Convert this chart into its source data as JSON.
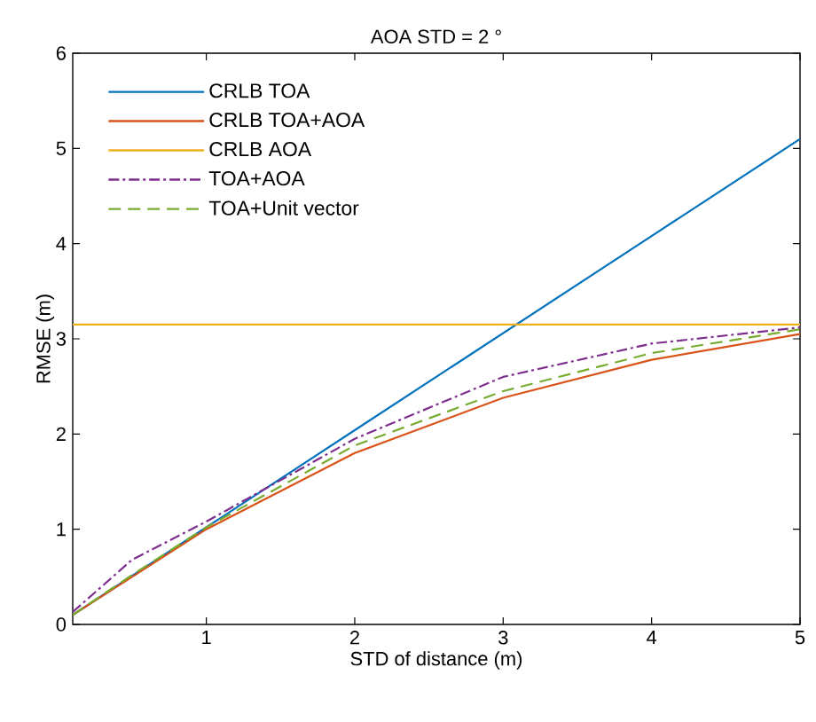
{
  "chart_data": {
    "type": "line",
    "title": "AOA STD = 2 °",
    "xlabel": "STD of distance (m)",
    "ylabel": "RMSE (m)",
    "x": [
      0.1,
      0.5,
      1,
      2,
      3,
      4,
      5
    ],
    "series": [
      {
        "name": "CRLB TOA",
        "color": "#0072bd",
        "values": [
          0.1,
          0.51,
          1.02,
          2.04,
          3.06,
          4.08,
          5.1
        ],
        "line_style": "solid"
      },
      {
        "name": "CRLB TOA+AOA",
        "color": "#d95319",
        "values": [
          0.1,
          0.5,
          1.0,
          1.8,
          2.38,
          2.78,
          3.05
        ],
        "line_style": "solid"
      },
      {
        "name": "CRLB AOA",
        "color": "#edb120",
        "values": [
          3.15,
          3.15,
          3.15,
          3.15,
          3.15,
          3.15,
          3.15
        ],
        "line_style": "solid"
      },
      {
        "name": "TOA+AOA",
        "color": "#7e2f8e",
        "values": [
          0.13,
          0.68,
          1.08,
          1.95,
          2.6,
          2.95,
          3.12
        ],
        "line_style": "dashdotted"
      },
      {
        "name": "TOA+Unit vector",
        "color": "#77ac30",
        "values": [
          0.1,
          0.52,
          1.02,
          1.88,
          2.45,
          2.85,
          3.1
        ],
        "line_style": "dashed"
      }
    ],
    "xlim": [
      0.1,
      5
    ],
    "ylim": [
      0,
      6
    ],
    "xticks": [
      1,
      2,
      3,
      4,
      5
    ],
    "yticks": [
      0,
      1,
      2,
      3,
      4,
      5,
      6
    ],
    "grid": false,
    "legend": "top left",
    "marker": "none"
  }
}
